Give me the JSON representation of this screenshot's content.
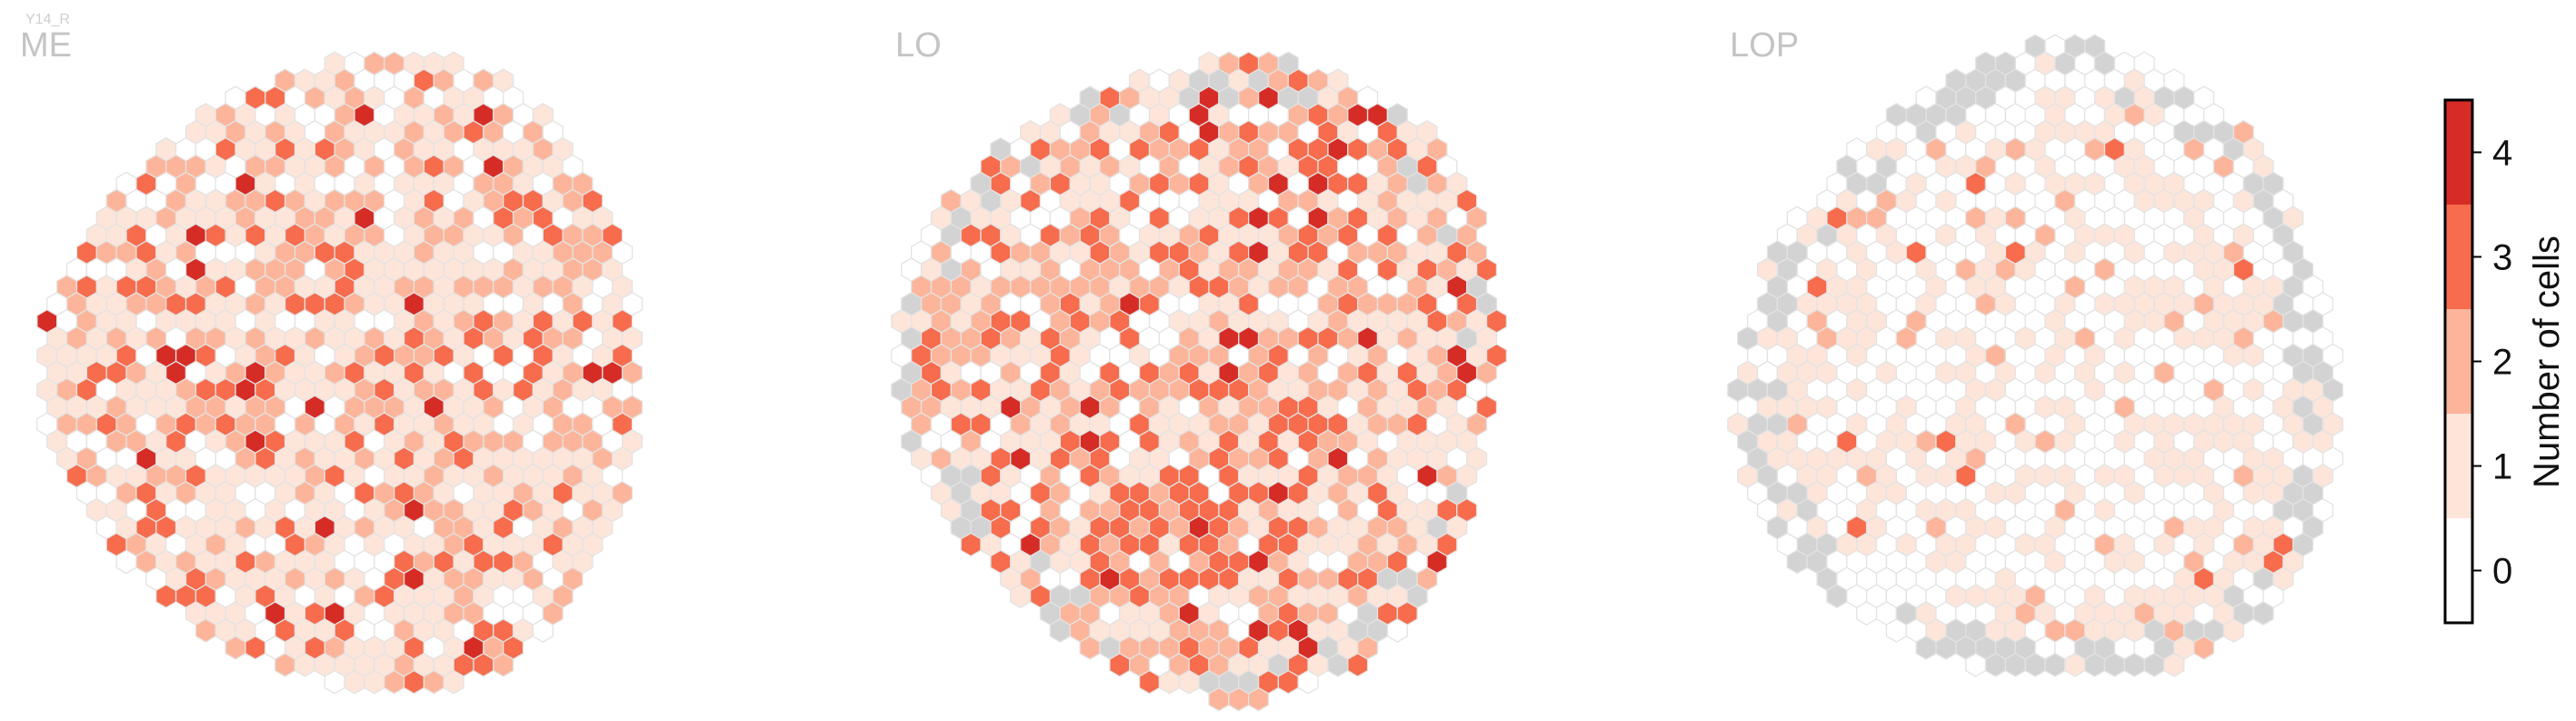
{
  "figure": {
    "supertitle": "Y14_R"
  },
  "chart_data": {
    "type": "heatmap",
    "subtype": "hexagonal-column-map",
    "panels": [
      {
        "name": "ME",
        "seed": 11,
        "weights": [
          0.2,
          0.38,
          0.27,
          0.12,
          0.03
        ],
        "missing_fraction": 0.0
      },
      {
        "name": "LO",
        "seed": 23,
        "weights": [
          0.12,
          0.3,
          0.3,
          0.2,
          0.06
        ],
        "missing_fraction": 0.04
      },
      {
        "name": "LOP",
        "seed": 37,
        "weights": [
          0.55,
          0.36,
          0.07,
          0.02,
          0.0
        ],
        "missing_fraction": 0.08
      }
    ],
    "colorbar": {
      "label": "Number of cells",
      "ticks": [
        "0",
        "1",
        "2",
        "3",
        "4"
      ],
      "colors": [
        "#ffffff",
        "#fde5da",
        "#fcb59a",
        "#f66c4d",
        "#d62c26"
      ]
    },
    "missing_color": "#d3d3d3",
    "edge_color": "#e3e3e3"
  }
}
